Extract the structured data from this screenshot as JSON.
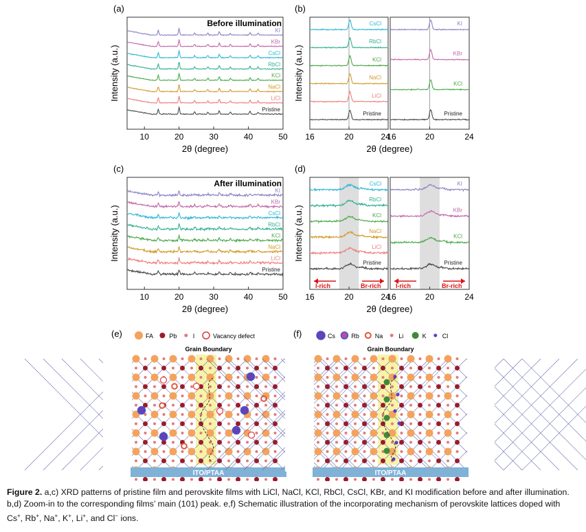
{
  "figure_number": "Figure 2.",
  "caption": {
    "lead": "Figure 2.",
    "text": "a,c) XRD patterns of pristine film and perovskite films with LiCl, NaCl, KCl, RbCl, CsCl, KBr, and KI modification before and after illumination. b,d) Zoom-in to the corresponding films’ main (101) peak. e,f) Schematic illustration of the incorporating mechanism of perovskite lattices doped with",
    "ions": [
      {
        "base": "Cs",
        "sup": "+"
      },
      {
        "base": "Rb",
        "sup": "+"
      },
      {
        "base": "Na",
        "sup": "+"
      },
      {
        "base": "K",
        "sup": "+"
      },
      {
        "base": "Li",
        "sup": "+"
      },
      {
        "base": "Cl",
        "sup": "−"
      }
    ],
    "ions_tail": "ions."
  },
  "panels": {
    "a": {
      "label": "(a)",
      "title": "Before illumination"
    },
    "b": {
      "label": "(b)"
    },
    "c": {
      "label": "(c)",
      "title": "After illumination"
    },
    "d": {
      "label": "(d)",
      "irich": "I-rich",
      "brrich": "Br-rich"
    },
    "e": {
      "label": "(e)"
    },
    "f": {
      "label": "(f)"
    }
  },
  "colors": {
    "Pristine": "#4a4a4a",
    "LiCl": "#ef7b7b",
    "NaCl": "#d19a2a",
    "KCl": "#4aa84a",
    "RbCl": "#2faf8f",
    "CsCl": "#2ab5d6",
    "KBr": "#c266a8",
    "KI": "#8a7fc4"
  },
  "chart_data": [
    {
      "type": "line",
      "panel": "a",
      "title": "Before illumination",
      "xlabel": "2θ (degree)",
      "ylabel": "Intensity (a.u.)",
      "xlim": [
        5,
        50
      ],
      "xticks": [
        10,
        20,
        30,
        40,
        50
      ],
      "series_bottom_to_top": [
        "Pristine",
        "LiCl",
        "NaCl",
        "KCl",
        "RbCl",
        "CsCl",
        "KBr",
        "KI"
      ],
      "peaks_2theta": [
        14.0,
        20.0,
        24.5,
        28.3,
        31.6,
        34.8,
        40.5,
        42.8
      ]
    },
    {
      "type": "line",
      "panel": "b",
      "subpanels": 2,
      "xlabel": "2θ (degree)",
      "ylabel": "Intensity (a.u.)",
      "xlim": [
        16,
        24
      ],
      "xticks": [
        16,
        20,
        24
      ],
      "left_series_bottom_to_top": [
        "Pristine",
        "LiCl",
        "NaCl",
        "KCl",
        "RbCl",
        "CsCl"
      ],
      "right_series_bottom_to_top": [
        "Pristine",
        "KCl",
        "KBr",
        "KI"
      ],
      "peak_2theta": 20.0
    },
    {
      "type": "line",
      "panel": "c",
      "title": "After illumination",
      "xlabel": "2θ (degree)",
      "ylabel": "Intensity (a.u.)",
      "xlim": [
        5,
        50
      ],
      "xticks": [
        10,
        20,
        30,
        40,
        50
      ],
      "series_bottom_to_top": [
        "Pristine",
        "LiCl",
        "NaCl",
        "KCl",
        "RbCl",
        "CsCl",
        "KBr",
        "KI"
      ],
      "peaks_2theta": [
        14.0,
        20.0,
        24.5,
        28.3,
        31.6,
        34.8,
        40.5,
        42.8
      ]
    },
    {
      "type": "line",
      "panel": "d",
      "subpanels": 2,
      "xlabel": "2θ (degree)",
      "ylabel": "Intensity (a.u.)",
      "xlim": [
        16,
        24
      ],
      "xticks": [
        16,
        20,
        24
      ],
      "left_series_bottom_to_top": [
        "Pristine",
        "LiCl",
        "NaCl",
        "KCl",
        "RbCl",
        "CsCl"
      ],
      "right_series_bottom_to_top": [
        "Pristine",
        "KCl",
        "KBr",
        "KI"
      ],
      "shaded_range_2theta": [
        19.0,
        21.0
      ],
      "annotations": [
        "I-rich",
        "Br-rich"
      ]
    }
  ],
  "schematic_e": {
    "legend": [
      {
        "label": "FA"
      },
      {
        "label": "Pb"
      },
      {
        "label": "I"
      },
      {
        "label": "Vacancy defect"
      }
    ],
    "grain_boundary": "Grain Boundary",
    "substrate": "ITO/PTAA"
  },
  "schematic_f": {
    "legend": [
      {
        "label": "Cs"
      },
      {
        "label": "Rb"
      },
      {
        "label": "Na"
      },
      {
        "label": "Li"
      },
      {
        "label": "K"
      },
      {
        "label": "Cl"
      }
    ],
    "grain_boundary": "Grain Boundary",
    "substrate": "ITO/PTAA"
  }
}
